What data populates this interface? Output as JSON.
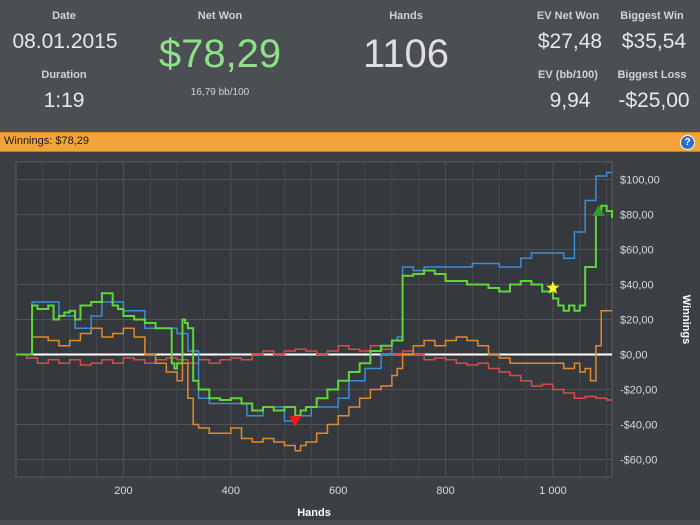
{
  "stats": {
    "date_label": "Date",
    "date_value": "08.01.2015",
    "duration_label": "Duration",
    "duration_value": "1:19",
    "net_won_label": "Net Won",
    "net_won_value": "$78,29",
    "bb_per_100": "16,79 bb/100",
    "hands_label": "Hands",
    "hands_value": "1106",
    "ev_net_won_label": "EV Net Won",
    "ev_net_won_value": "$27,48",
    "biggest_win_label": "Biggest Win",
    "biggest_win_value": "$35,54",
    "ev_bb_label": "EV (bb/100)",
    "ev_bb_value": "9,94",
    "biggest_loss_label": "Biggest Loss",
    "biggest_loss_value": "-$25,00"
  },
  "bar": {
    "text": "Winnings: $78,29",
    "help_icon": "help-icon"
  },
  "colors": {
    "green": "#5ed63a",
    "blue": "#3b8ed6",
    "orange": "#e08a2c",
    "red": "#d94a4a",
    "netwon": "#8fe08a",
    "accent": "#f2a43a"
  },
  "chart_data": {
    "type": "line",
    "xlabel": "Hands",
    "ylabel": "Winnings",
    "xlim": [
      0,
      1110
    ],
    "ylim": [
      -70,
      110
    ],
    "x_ticks": [
      200,
      400,
      600,
      800,
      1000
    ],
    "x_tick_labels": [
      "200",
      "400",
      "600",
      "800",
      "1 000"
    ],
    "y_ticks": [
      100,
      80,
      60,
      40,
      20,
      0,
      -20,
      -40,
      -60
    ],
    "y_tick_labels": [
      "$100,00",
      "$80,00",
      "$60,00",
      "$40,00",
      "$20,00",
      "$0,00",
      "-$20,00",
      "-$40,00",
      "-$60,00"
    ],
    "series": [
      {
        "color": "#3b8ed6",
        "x": [
          0,
          25,
          30,
          60,
          80,
          110,
          140,
          160,
          200,
          240,
          280,
          295,
          300,
          320,
          340,
          360,
          400,
          430,
          460,
          500,
          520,
          550,
          580,
          600,
          620,
          650,
          680,
          700,
          710,
          720,
          740,
          760,
          800,
          850,
          900,
          940,
          960,
          1000,
          1020,
          1040,
          1050,
          1060,
          1070,
          1080,
          1100,
          1110
        ],
        "y": [
          0,
          0,
          30,
          30,
          22,
          15,
          22,
          30,
          25,
          15,
          15,
          15,
          12,
          2,
          -25,
          -28,
          -28,
          -35,
          -30,
          -38,
          -35,
          -30,
          -30,
          -25,
          -15,
          -8,
          0,
          8,
          10,
          50,
          48,
          50,
          50,
          52,
          50,
          55,
          58,
          58,
          55,
          70,
          70,
          88,
          88,
          102,
          104,
          104
        ]
      },
      {
        "color": "#5ed63a",
        "x": [
          0,
          25,
          30,
          40,
          60,
          70,
          80,
          90,
          100,
          110,
          120,
          140,
          160,
          180,
          190,
          200,
          220,
          240,
          260,
          280,
          290,
          295,
          300,
          310,
          315,
          320,
          330,
          340,
          360,
          380,
          400,
          420,
          440,
          460,
          480,
          500,
          520,
          530,
          540,
          560,
          580,
          600,
          620,
          640,
          660,
          680,
          700,
          710,
          720,
          740,
          760,
          780,
          800,
          820,
          840,
          860,
          880,
          900,
          920,
          940,
          960,
          980,
          1000,
          1010,
          1020,
          1030,
          1040,
          1050,
          1060,
          1070,
          1080,
          1090,
          1100,
          1110
        ],
        "y": [
          0,
          0,
          28,
          26,
          28,
          20,
          22,
          24,
          25,
          20,
          28,
          30,
          35,
          28,
          26,
          22,
          20,
          18,
          15,
          15,
          -5,
          -8,
          -5,
          20,
          18,
          15,
          -15,
          -20,
          -25,
          -26,
          -25,
          -28,
          -32,
          -30,
          -32,
          -30,
          -35,
          -32,
          -30,
          -25,
          -20,
          -15,
          -10,
          -5,
          2,
          5,
          8,
          8,
          45,
          46,
          48,
          46,
          42,
          42,
          40,
          40,
          38,
          36,
          40,
          42,
          40,
          36,
          32,
          28,
          25,
          28,
          25,
          28,
          50,
          50,
          80,
          85,
          82,
          78
        ]
      },
      {
        "color": "#e08a2c",
        "x": [
          0,
          20,
          30,
          60,
          80,
          100,
          120,
          140,
          160,
          180,
          200,
          220,
          240,
          260,
          280,
          300,
          310,
          320,
          330,
          340,
          360,
          380,
          400,
          420,
          440,
          460,
          480,
          500,
          520,
          530,
          540,
          560,
          580,
          600,
          620,
          640,
          660,
          680,
          700,
          710,
          720,
          740,
          760,
          780,
          800,
          820,
          840,
          860,
          880,
          900,
          920,
          940,
          960,
          980,
          1000,
          1020,
          1040,
          1050,
          1060,
          1070,
          1080,
          1090,
          1100,
          1110
        ],
        "y": [
          0,
          0,
          10,
          8,
          5,
          8,
          12,
          15,
          10,
          12,
          15,
          10,
          0,
          -5,
          -10,
          -15,
          -5,
          -25,
          -40,
          -42,
          -45,
          -45,
          -42,
          -48,
          -50,
          -48,
          -50,
          -52,
          -55,
          -52,
          -50,
          -45,
          -40,
          -35,
          -30,
          -25,
          -20,
          -18,
          -12,
          -8,
          0,
          5,
          8,
          5,
          8,
          10,
          8,
          5,
          0,
          -2,
          -5,
          -5,
          -5,
          -5,
          -5,
          -8,
          -5,
          -10,
          -8,
          -15,
          5,
          25,
          25,
          25
        ]
      },
      {
        "color": "#d94a4a",
        "x": [
          0,
          20,
          40,
          60,
          80,
          100,
          120,
          140,
          160,
          180,
          200,
          220,
          240,
          260,
          280,
          300,
          320,
          340,
          360,
          380,
          400,
          420,
          440,
          460,
          480,
          500,
          520,
          540,
          560,
          580,
          600,
          620,
          640,
          660,
          680,
          700,
          720,
          740,
          760,
          780,
          800,
          820,
          840,
          860,
          880,
          900,
          920,
          940,
          960,
          980,
          1000,
          1020,
          1040,
          1060,
          1080,
          1100,
          1110
        ],
        "y": [
          0,
          -2,
          -5,
          -3,
          -5,
          -3,
          -6,
          -5,
          -3,
          -5,
          -2,
          -3,
          -5,
          -3,
          -2,
          -3,
          -5,
          -3,
          -5,
          -3,
          -2,
          -3,
          0,
          2,
          0,
          2,
          3,
          2,
          0,
          2,
          5,
          3,
          2,
          5,
          3,
          0,
          2,
          0,
          -3,
          -2,
          -3,
          -5,
          -6,
          -5,
          -8,
          -10,
          -12,
          -15,
          -18,
          -17,
          -20,
          -22,
          -25,
          -24,
          -25,
          -26,
          -26
        ]
      }
    ],
    "markers": [
      {
        "type": "triangle-down",
        "color": "#e81a1a",
        "x": 520,
        "y": -38
      },
      {
        "type": "star",
        "color": "#f5f52a",
        "x": 1000,
        "y": 38
      },
      {
        "type": "triangle-up",
        "color": "#2e9a2e",
        "x": 1085,
        "y": 82
      }
    ]
  }
}
